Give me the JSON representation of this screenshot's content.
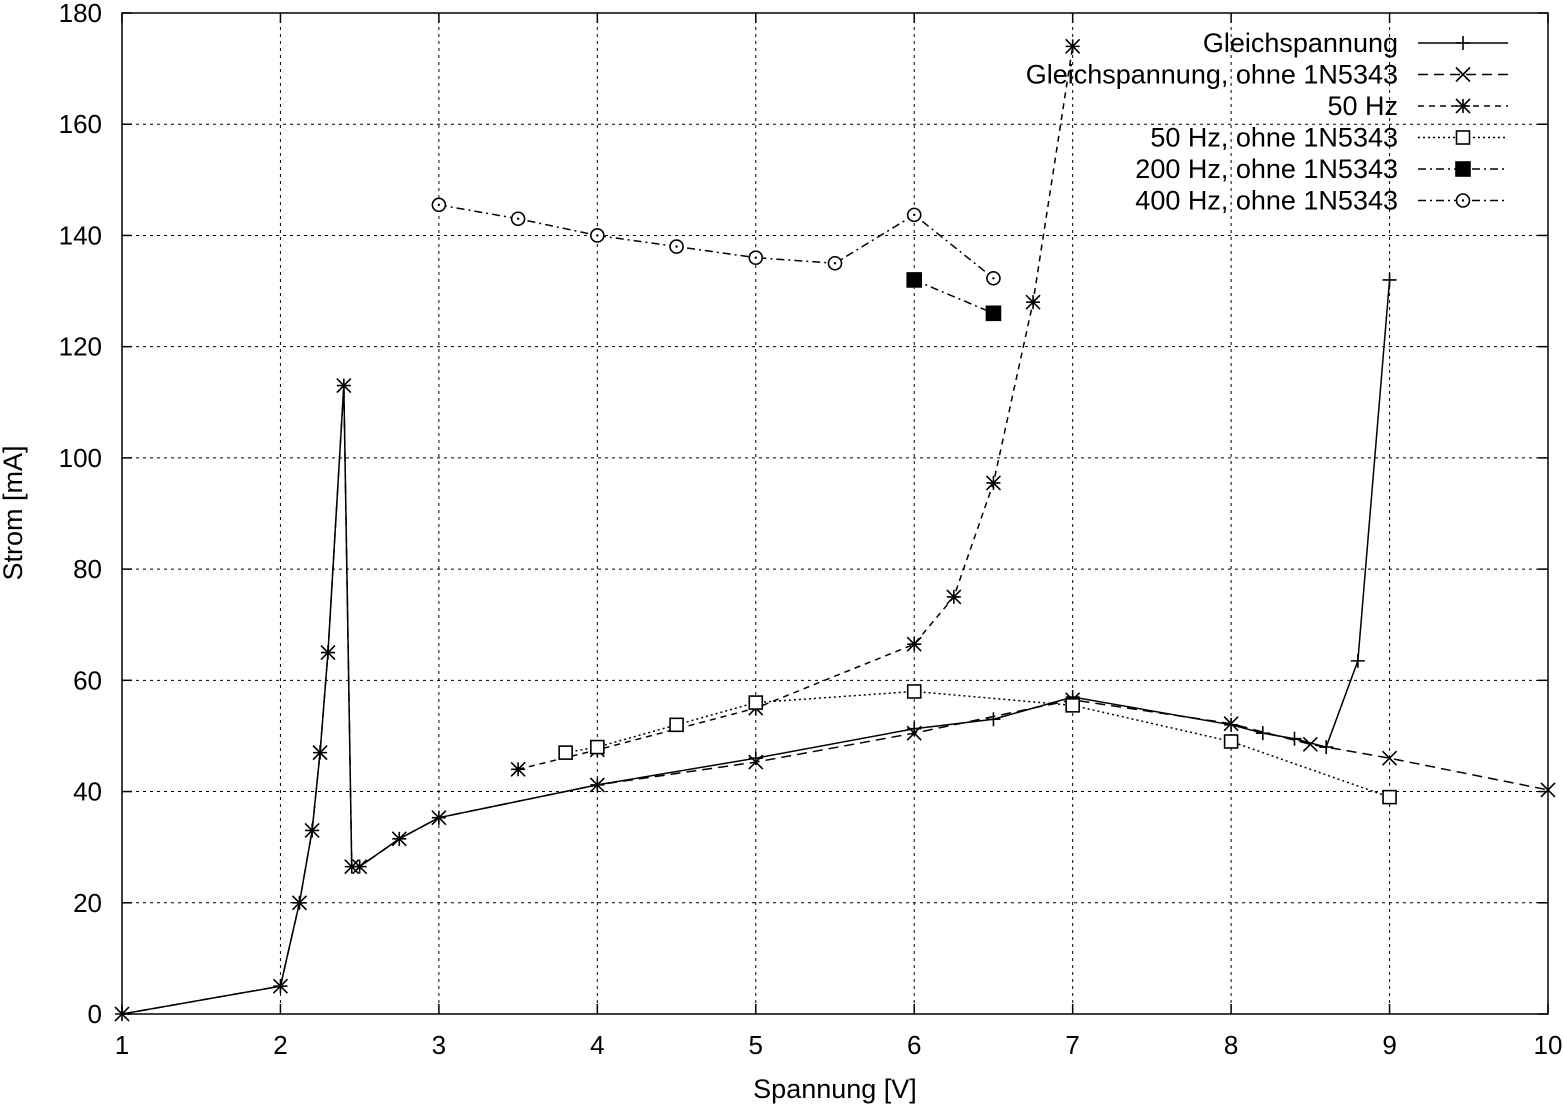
{
  "chart_data": {
    "type": "line",
    "title": "",
    "xlabel": "Spannung [V]",
    "ylabel": "Strom [mA]",
    "xlim": [
      1,
      10
    ],
    "ylim": [
      0,
      180
    ],
    "xticks": [
      1,
      2,
      3,
      4,
      5,
      6,
      7,
      8,
      9,
      10
    ],
    "yticks": [
      0,
      20,
      40,
      60,
      80,
      100,
      120,
      140,
      160,
      180
    ],
    "grid": true,
    "legend_position": "top-right",
    "series": [
      {
        "name": "Gleichspannung",
        "marker": "plus",
        "dash": "solid",
        "x": [
          1,
          2,
          2.12,
          2.2,
          2.25,
          2.3,
          2.4,
          2.45,
          2.5,
          2.75,
          3,
          4,
          5,
          6,
          6.5,
          7,
          8,
          8.2,
          8.4,
          8.6,
          8.8,
          9
        ],
        "y": [
          0,
          5,
          20,
          33,
          47,
          65,
          113,
          26.5,
          26.5,
          31.5,
          35.3,
          41.2,
          46,
          51.3,
          53,
          57,
          52,
          50.5,
          49.5,
          48,
          63.5,
          132
        ]
      },
      {
        "name": "Gleichspannung, ohne 1N5343",
        "marker": "cross",
        "dash": "dashed",
        "x": [
          1,
          2,
          2.12,
          2.2,
          2.25,
          2.3,
          2.4,
          2.45,
          2.5,
          2.75,
          3,
          4,
          5,
          6,
          7,
          8,
          8.5,
          9,
          10
        ],
        "y": [
          0,
          5,
          20,
          33,
          47,
          65,
          113,
          26.5,
          26.5,
          31.5,
          35.3,
          41.2,
          45.3,
          50.5,
          56.5,
          52.2,
          48.5,
          46,
          40.3
        ]
      },
      {
        "name": "50 Hz",
        "marker": "star",
        "dash": "dashed-short",
        "x": [
          3.5,
          4,
          5,
          6,
          6.25,
          6.5,
          6.75,
          7
        ],
        "y": [
          44,
          47.5,
          55,
          66.5,
          75,
          95.5,
          128,
          174
        ]
      },
      {
        "name": "50 Hz, ohne 1N5343",
        "marker": "square-open",
        "dash": "dotted",
        "x": [
          3.8,
          4,
          4.5,
          5,
          6,
          7,
          8,
          9
        ],
        "y": [
          47,
          48,
          52,
          56,
          58,
          55.5,
          49,
          39
        ]
      },
      {
        "name": "200 Hz, ohne 1N5343",
        "marker": "square-filled",
        "dash": "dash-dot",
        "x": [
          6,
          6.5
        ],
        "y": [
          132,
          126
        ]
      },
      {
        "name": "400 Hz, ohne 1N5343",
        "marker": "circle-open",
        "dash": "dash-dot",
        "x": [
          3,
          3.5,
          4,
          4.5,
          5,
          5.5,
          6,
          6.5
        ],
        "y": [
          145.5,
          143,
          140,
          138,
          136,
          135,
          143.7,
          132.3
        ]
      }
    ]
  }
}
